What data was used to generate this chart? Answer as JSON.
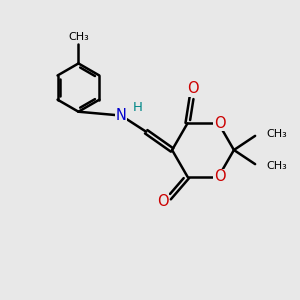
{
  "bg_color": "#e8e8e8",
  "bond_color": "#000000",
  "bond_lw": 1.8,
  "atom_colors": {
    "O": "#cc0000",
    "N": "#0000cc",
    "H": "#008888",
    "C": "#000000"
  },
  "font_size": 9.5,
  "fig_size": [
    3.0,
    3.0
  ],
  "dpi": 100,
  "xlim": [
    0,
    10
  ],
  "ylim": [
    0,
    10
  ]
}
